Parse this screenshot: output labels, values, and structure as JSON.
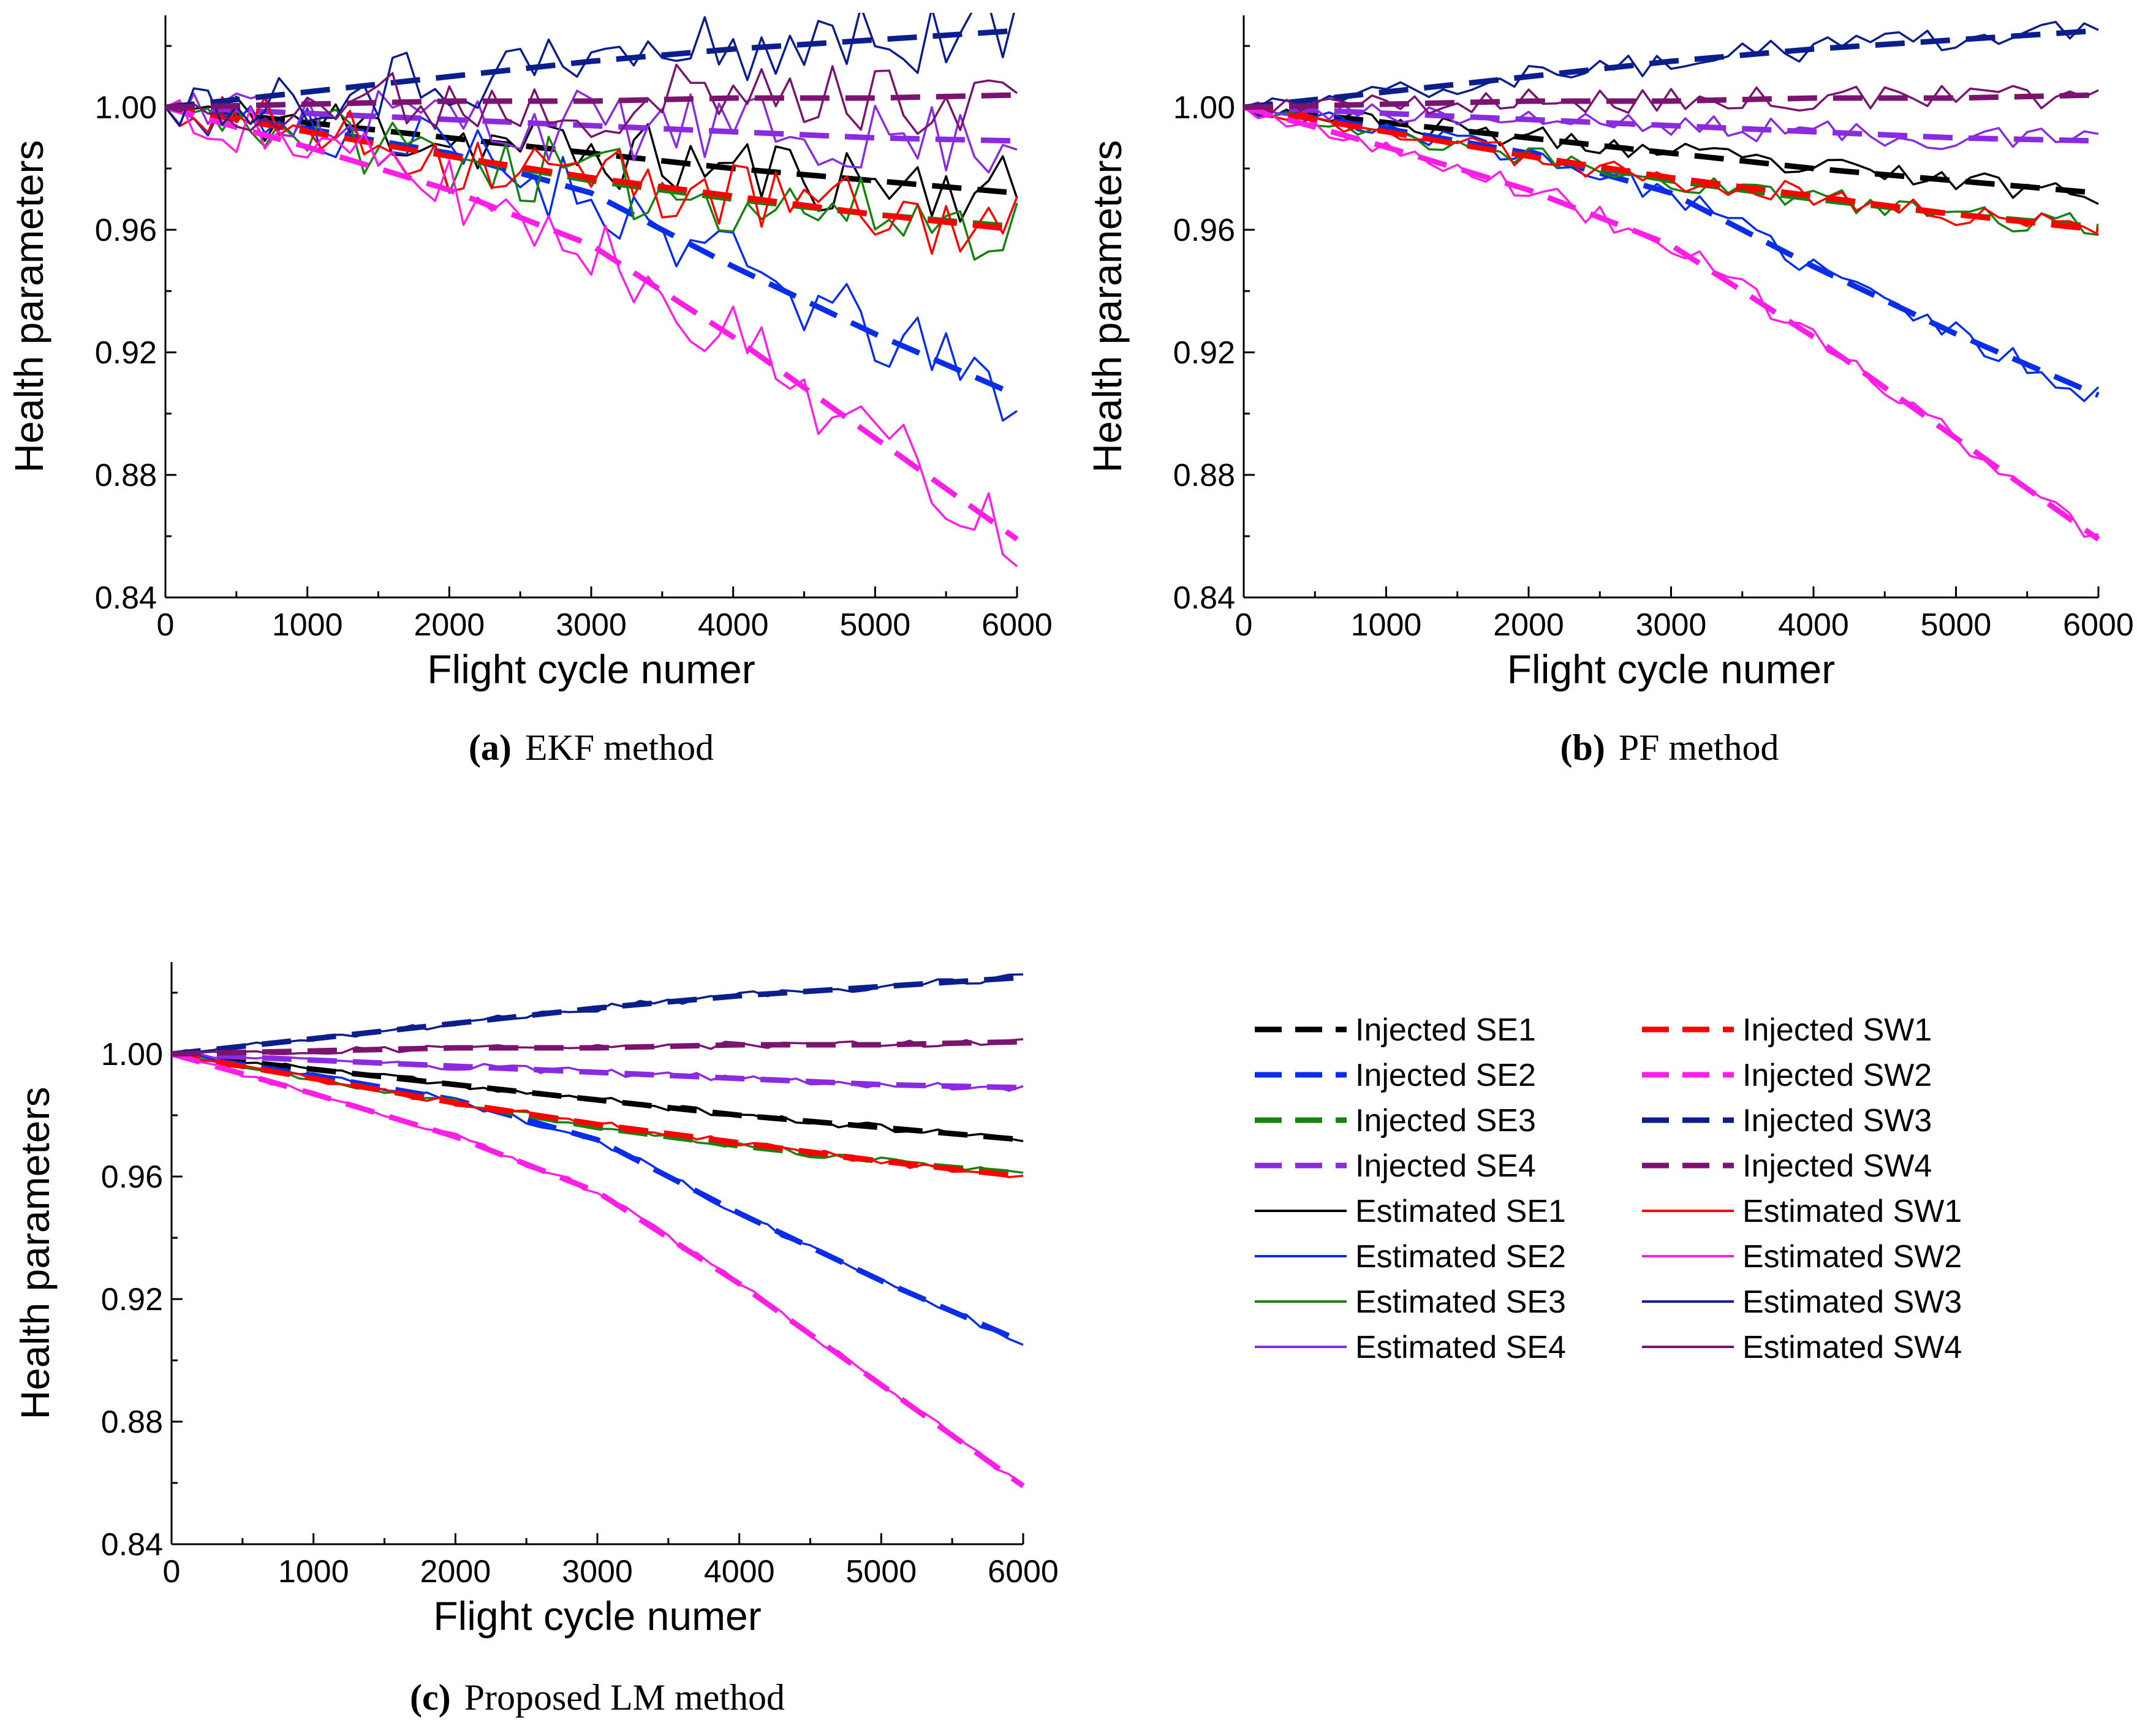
{
  "chart_data": [
    {
      "type": "line",
      "caption_label": "(a)",
      "caption_text": "EKF method",
      "xlabel": "Flight cycle numer",
      "ylabel": "Health parameters",
      "xlim": [
        0,
        6000
      ],
      "ylim": [
        0.84,
        1.03
      ],
      "xticks": [
        "0",
        "1000",
        "2000",
        "3000",
        "4000",
        "5000",
        "6000"
      ],
      "yticks": [
        "0.84",
        "0.88",
        "0.92",
        "0.96",
        "1.00"
      ],
      "noise": 0.012,
      "seed": 11
    },
    {
      "type": "line",
      "caption_label": "(b)",
      "caption_text": "PF method",
      "xlabel": "Flight cycle numer",
      "ylabel": "Health parameters",
      "xlim": [
        0,
        6000
      ],
      "ylim": [
        0.84,
        1.03
      ],
      "xticks": [
        "0",
        "1000",
        "2000",
        "3000",
        "4000",
        "5000",
        "6000"
      ],
      "yticks": [
        "0.84",
        "0.88",
        "0.92",
        "0.96",
        "1.00"
      ],
      "noise": 0.004,
      "seed": 23
    },
    {
      "type": "line",
      "caption_label": "(c)",
      "caption_text": "Proposed LM method",
      "xlabel": "Flight cycle numer",
      "ylabel": "Health parameters",
      "xlim": [
        0,
        6000
      ],
      "ylim": [
        0.84,
        1.03
      ],
      "xticks": [
        "0",
        "1000",
        "2000",
        "3000",
        "4000",
        "5000",
        "6000"
      ],
      "yticks": [
        "0.84",
        "0.88",
        "0.92",
        "0.96",
        "1.00"
      ],
      "noise": 0.0012,
      "seed": 37
    }
  ],
  "x": [
    0,
    1000,
    2000,
    3000,
    4000,
    5000,
    6000
  ],
  "series": [
    {
      "key": "SE1",
      "color": "#000000",
      "values": [
        1.0,
        0.995,
        0.99,
        0.985,
        0.98,
        0.976,
        0.972
      ]
    },
    {
      "key": "SE2",
      "color": "#0a2ee8",
      "values": [
        1.0,
        0.993,
        0.985,
        0.972,
        0.948,
        0.926,
        0.906
      ]
    },
    {
      "key": "SE3",
      "color": "#17820f",
      "values": [
        1.0,
        0.992,
        0.984,
        0.976,
        0.97,
        0.965,
        0.961
      ]
    },
    {
      "key": "SE4",
      "color": "#8a2be2",
      "values": [
        1.0,
        0.998,
        0.996,
        0.994,
        0.992,
        0.99,
        0.989
      ]
    },
    {
      "key": "SW1",
      "color": "#ff0000",
      "values": [
        1.0,
        0.992,
        0.984,
        0.977,
        0.971,
        0.965,
        0.96
      ]
    },
    {
      "key": "SW2",
      "color": "#ff1ee6",
      "values": [
        1.0,
        0.987,
        0.973,
        0.955,
        0.925,
        0.892,
        0.859
      ]
    },
    {
      "key": "SW3",
      "color": "#0b1e8c",
      "values": [
        1.0,
        1.005,
        1.01,
        1.015,
        1.019,
        1.022,
        1.025
      ]
    },
    {
      "key": "SW4",
      "color": "#7a1470",
      "values": [
        1.0,
        1.001,
        1.002,
        1.002,
        1.003,
        1.003,
        1.004
      ]
    }
  ],
  "legend": {
    "col1": [
      {
        "label": "Injected SE1",
        "color": "#000000",
        "dash": true
      },
      {
        "label": "Injected SE2",
        "color": "#0a2ee8",
        "dash": true
      },
      {
        "label": "Injected SE3",
        "color": "#17820f",
        "dash": true
      },
      {
        "label": "Injected SE4",
        "color": "#8a2be2",
        "dash": true
      },
      {
        "label": "Estimated SE1",
        "color": "#000000",
        "dash": false
      },
      {
        "label": "Estimated SE2",
        "color": "#0a2ee8",
        "dash": false
      },
      {
        "label": "Estimated SE3",
        "color": "#17820f",
        "dash": false
      },
      {
        "label": "Estimated SE4",
        "color": "#8a2be2",
        "dash": false
      }
    ],
    "col2": [
      {
        "label": "Injected SW1",
        "color": "#ff0000",
        "dash": true
      },
      {
        "label": "Injected SW2",
        "color": "#ff1ee6",
        "dash": true
      },
      {
        "label": "Injected SW3",
        "color": "#0b1e8c",
        "dash": true
      },
      {
        "label": "Injected SW4",
        "color": "#7a1470",
        "dash": true
      },
      {
        "label": "Estimated SW1",
        "color": "#ff0000",
        "dash": false
      },
      {
        "label": "Estimated SW2",
        "color": "#ff1ee6",
        "dash": false
      },
      {
        "label": "Estimated SW3",
        "color": "#0b1e8c",
        "dash": false
      },
      {
        "label": "Estimated SW4",
        "color": "#7a1470",
        "dash": false
      }
    ]
  }
}
